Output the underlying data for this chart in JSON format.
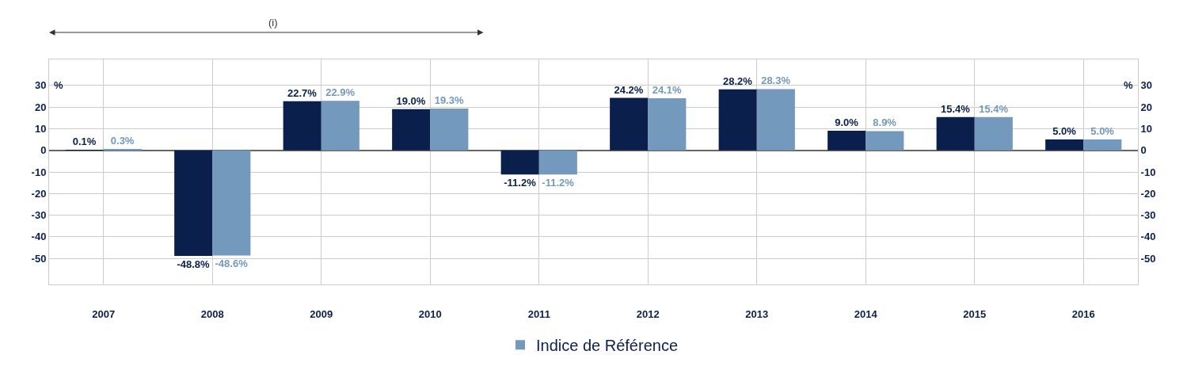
{
  "chart_data": {
    "type": "bar",
    "categories": [
      "2007",
      "2008",
      "2009",
      "2010",
      "2011",
      "2012",
      "2013",
      "2014",
      "2015",
      "2016"
    ],
    "series": [
      {
        "color": "#0a1f4c",
        "values": [
          0.1,
          -48.8,
          22.7,
          19.0,
          -11.2,
          24.2,
          28.2,
          9.0,
          15.4,
          5.0
        ],
        "value_labels": [
          "0.1%",
          "-48.8%",
          "22.7%",
          "19.0%",
          "-11.2%",
          "24.2%",
          "28.2%",
          "9.0%",
          "15.4%",
          "5.0%"
        ]
      },
      {
        "name": "Indice de Référence",
        "color": "#7399bd",
        "values": [
          0.3,
          -48.6,
          22.9,
          19.3,
          -11.2,
          24.1,
          28.3,
          8.9,
          15.4,
          5.0
        ],
        "value_labels": [
          "0.3%",
          "-48.6%",
          "22.9%",
          "19.3%",
          "-11.2%",
          "24.1%",
          "28.3%",
          "8.9%",
          "15.4%",
          "5.0%"
        ]
      }
    ],
    "ylabel": "%",
    "y2label": "%",
    "ylim": [
      -62,
      42
    ],
    "yticks": [
      -50,
      -40,
      -30,
      -20,
      -10,
      0,
      10,
      20,
      30
    ],
    "y2lim": [
      -62,
      42
    ],
    "y2ticks": [
      -50,
      -40,
      -30,
      -20,
      -10,
      0,
      10,
      20,
      30
    ],
    "annotations": [
      "(i)"
    ],
    "grid": true,
    "legend": "bottom"
  }
}
